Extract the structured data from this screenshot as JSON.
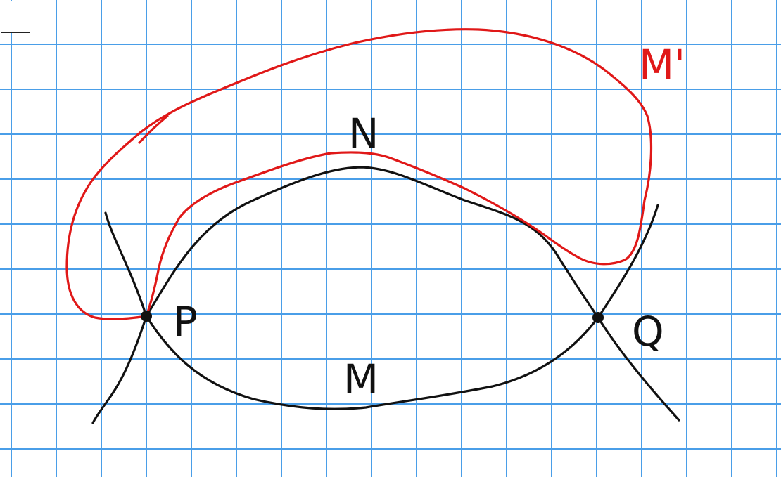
{
  "colors": {
    "grid": "#4a9ee8",
    "ink": "#111111",
    "accent": "#e01818",
    "background": "#ffffff"
  },
  "labels": {
    "p": "P",
    "q": "Q",
    "n": "N",
    "m": "M",
    "m_prime": "M'"
  }
}
